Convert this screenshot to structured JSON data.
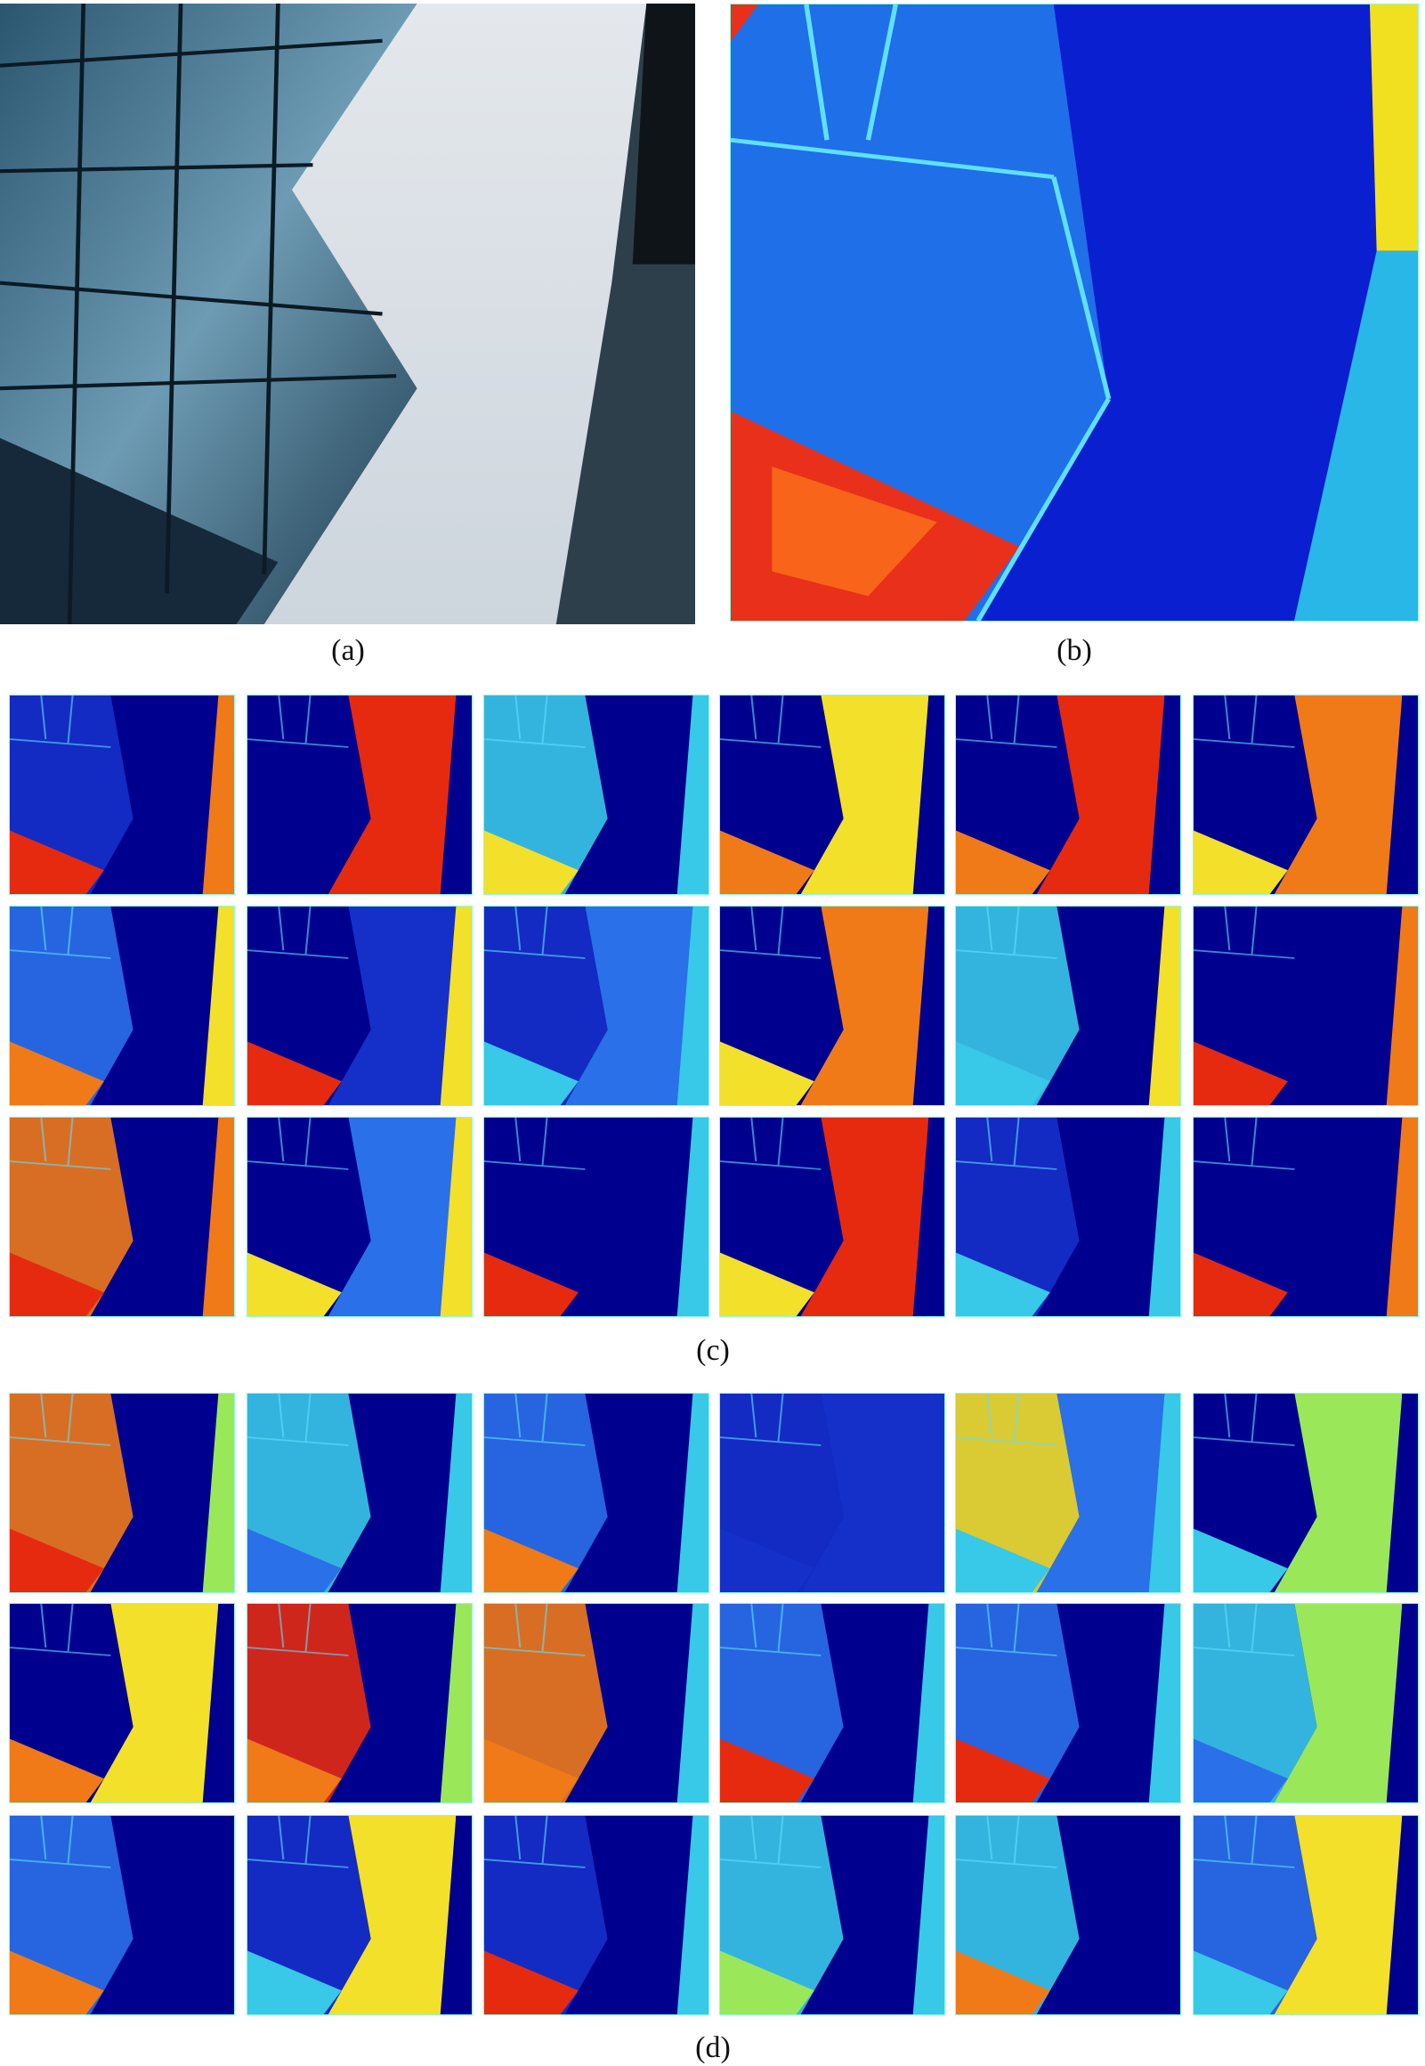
{
  "figure": {
    "captions": {
      "a": "(a)",
      "b": "(b)",
      "c": "(c)",
      "d": "(d)"
    },
    "panels": [
      {
        "id": "a",
        "description_label": "input-photo"
      },
      {
        "id": "b",
        "description_label": "feature-heatmap"
      },
      {
        "id": "c",
        "rows": 3,
        "cols": 6
      },
      {
        "id": "d",
        "rows": 3,
        "cols": 6
      }
    ],
    "colors": {
      "colormap": "jet",
      "background_blue": "#00008f",
      "sky_gray": "#d7dde3",
      "glass_blue": "#3f6f8e"
    }
  }
}
